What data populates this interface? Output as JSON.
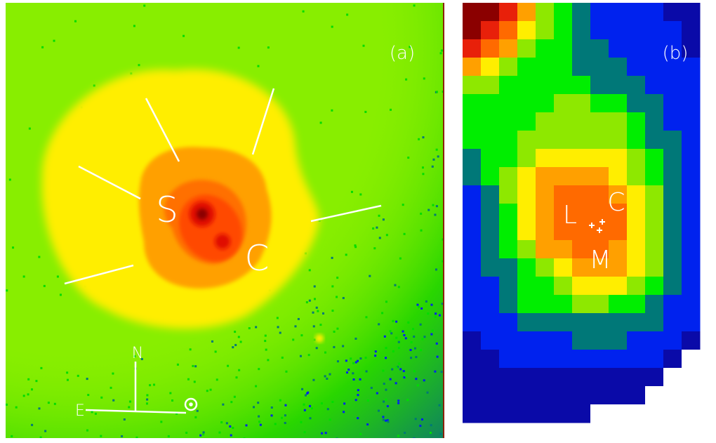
{
  "panel_a": {
    "label": "(a)",
    "markers": [
      "S",
      "C"
    ],
    "compass": {
      "north": "N",
      "east": "E"
    }
  },
  "panel_b": {
    "label": "(b)",
    "markers": [
      "L",
      "C",
      "M"
    ]
  }
}
